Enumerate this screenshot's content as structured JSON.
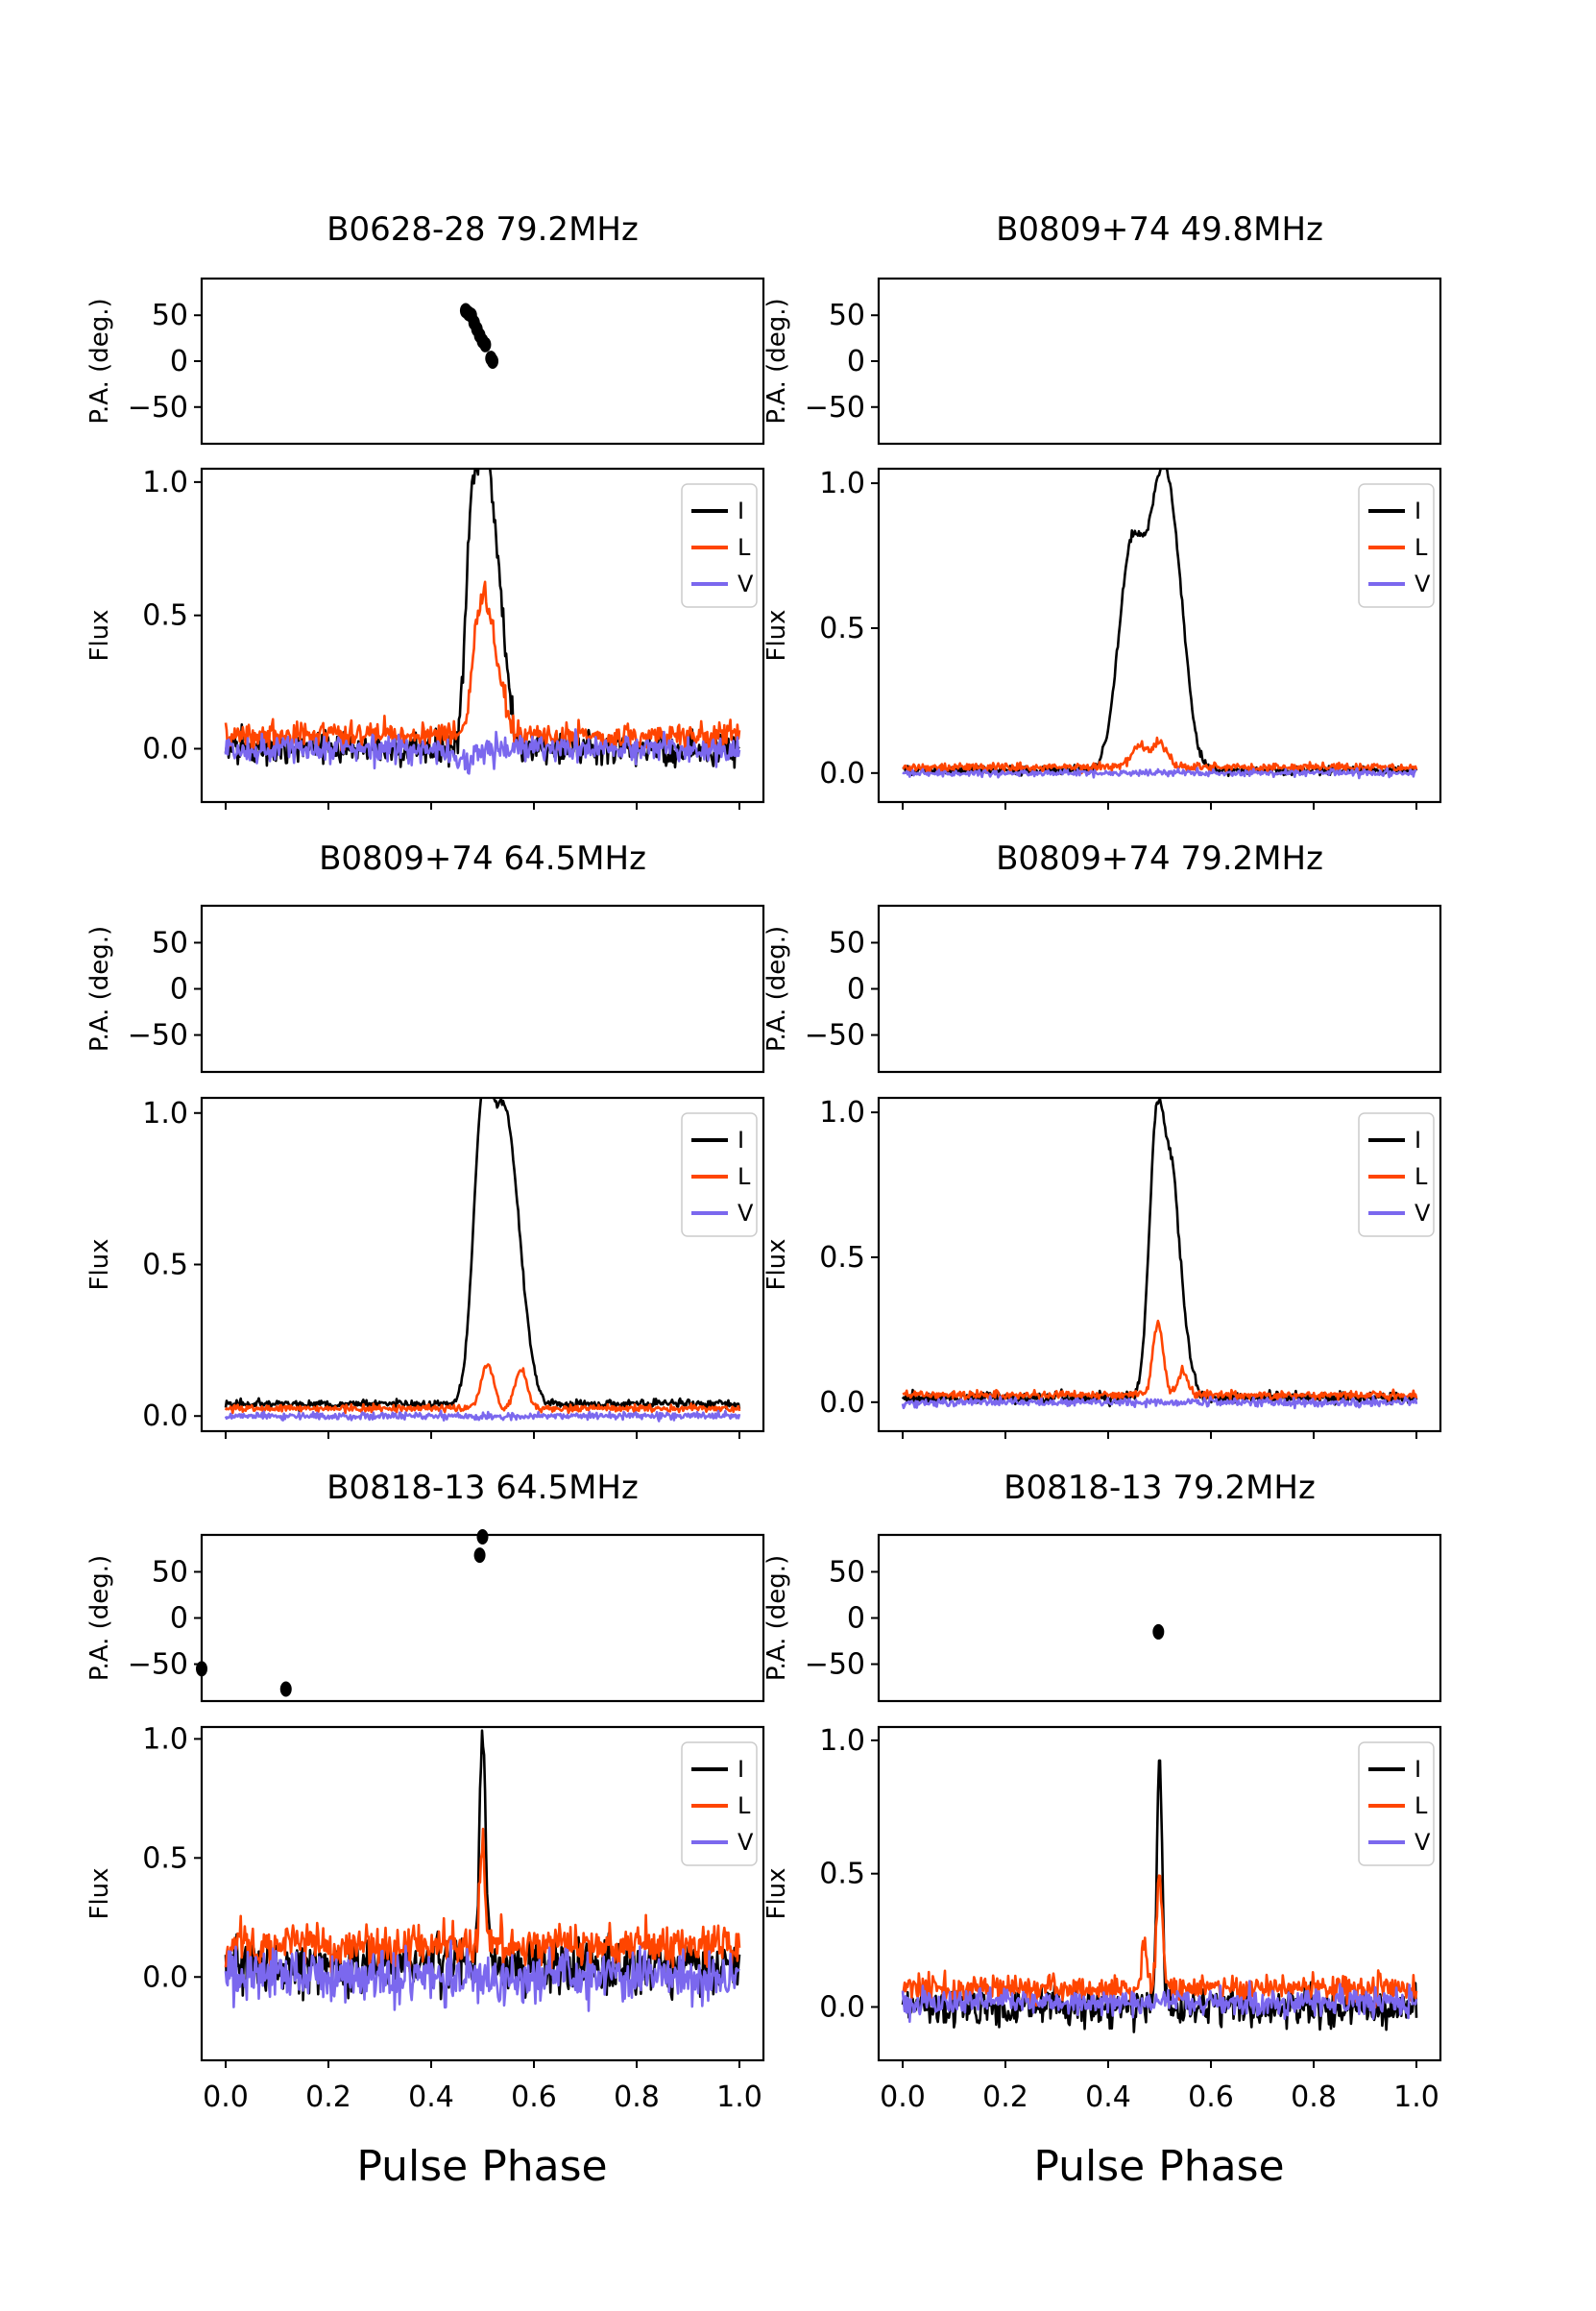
{
  "figure": {
    "xlabel": "Pulse Phase"
  },
  "colors": {
    "I": "#000000",
    "L": "#ff4500",
    "V": "#7b68ee"
  },
  "chart_data": [
    {
      "title": "B0628-28 79.2MHz",
      "type": "line",
      "pa": {
        "ylabel": "P.A. (deg.)",
        "ylim": [
          -90,
          90
        ],
        "yticks": [
          "50",
          "0",
          "−50"
        ],
        "points": [
          [
            0.47,
            55
          ],
          [
            0.475,
            52
          ],
          [
            0.48,
            50
          ],
          [
            0.485,
            42
          ],
          [
            0.49,
            35
          ],
          [
            0.495,
            28
          ],
          [
            0.5,
            22
          ],
          [
            0.505,
            18
          ],
          [
            0.515,
            3
          ],
          [
            0.518,
            0
          ]
        ]
      },
      "flux": {
        "ylabel": "Flux",
        "xlim": [
          0,
          1
        ],
        "ylim": [
          -0.2,
          1.05
        ],
        "yticks": [
          "0.0",
          "0.5",
          "1.0"
        ],
        "xticks": [
          "0.0",
          "0.2",
          "0.4",
          "0.6",
          "0.8",
          "1.0"
        ],
        "legend": [
          "I",
          "L",
          "V"
        ],
        "legend_position": "top-right",
        "series": [
          {
            "name": "I",
            "baseline": 0.0,
            "noise": 0.06,
            "components": [
              [
                0.48,
                0.9,
                0.012
              ],
              [
                0.505,
                0.95,
                0.012
              ],
              [
                0.53,
                0.6,
                0.015
              ]
            ]
          },
          {
            "name": "L",
            "baseline": 0.05,
            "noise": 0.05,
            "components": [
              [
                0.49,
                0.35,
                0.012
              ],
              [
                0.51,
                0.4,
                0.012
              ],
              [
                0.535,
                0.18,
                0.012
              ]
            ]
          },
          {
            "name": "V",
            "baseline": 0.0,
            "noise": 0.05,
            "components": [
              [
                0.46,
                -0.05,
                0.02
              ]
            ]
          }
        ]
      }
    },
    {
      "title": "B0809+74 49.8MHz",
      "type": "line",
      "pa": {
        "ylabel": "P.A. (deg.)",
        "ylim": [
          -90,
          90
        ],
        "yticks": [
          "50",
          "0",
          "−50"
        ],
        "points": []
      },
      "flux": {
        "ylabel": "Flux",
        "xlim": [
          0,
          1
        ],
        "ylim": [
          -0.1,
          1.05
        ],
        "yticks": [
          "0.0",
          "0.5",
          "1.0"
        ],
        "xticks": [
          "0.0",
          "0.2",
          "0.4",
          "0.6",
          "0.8",
          "1.0"
        ],
        "legend": [
          "I",
          "L",
          "V"
        ],
        "legend_position": "top-right",
        "series": [
          {
            "name": "I",
            "baseline": 0.01,
            "noise": 0.015,
            "components": [
              [
                0.445,
                0.75,
                0.025
              ],
              [
                0.505,
                0.95,
                0.025
              ],
              [
                0.54,
                0.3,
                0.02
              ]
            ]
          },
          {
            "name": "L",
            "baseline": 0.02,
            "noise": 0.015,
            "components": [
              [
                0.46,
                0.07,
                0.015
              ],
              [
                0.5,
                0.08,
                0.015
              ]
            ]
          },
          {
            "name": "V",
            "baseline": 0.0,
            "noise": 0.012,
            "components": []
          }
        ]
      }
    },
    {
      "title": "B0809+74 64.5MHz",
      "type": "line",
      "pa": {
        "ylabel": "P.A. (deg.)",
        "ylim": [
          -90,
          90
        ],
        "yticks": [
          "50",
          "0",
          "−50"
        ],
        "points": []
      },
      "flux": {
        "ylabel": "Flux",
        "xlim": [
          0,
          1
        ],
        "ylim": [
          -0.05,
          1.05
        ],
        "yticks": [
          "0.0",
          "0.5",
          "1.0"
        ],
        "xticks": [
          "0.0",
          "0.2",
          "0.4",
          "0.6",
          "0.8",
          "1.0"
        ],
        "legend": [
          "I",
          "L",
          "V"
        ],
        "legend_position": "top-right",
        "series": [
          {
            "name": "I",
            "baseline": 0.04,
            "noise": 0.015,
            "components": [
              [
                0.5,
                0.95,
                0.018
              ],
              [
                0.54,
                0.8,
                0.02
              ],
              [
                0.57,
                0.35,
                0.02
              ]
            ]
          },
          {
            "name": "L",
            "baseline": 0.025,
            "noise": 0.012,
            "components": [
              [
                0.51,
                0.15,
                0.012
              ],
              [
                0.575,
                0.13,
                0.012
              ]
            ]
          },
          {
            "name": "V",
            "baseline": 0.0,
            "noise": 0.012,
            "components": []
          }
        ]
      }
    },
    {
      "title": "B0809+74 79.2MHz",
      "type": "line",
      "pa": {
        "ylabel": "P.A. (deg.)",
        "ylim": [
          -90,
          90
        ],
        "yticks": [
          "50",
          "0",
          "−50"
        ],
        "points": []
      },
      "flux": {
        "ylabel": "Flux",
        "xlim": [
          0,
          1
        ],
        "ylim": [
          -0.1,
          1.05
        ],
        "yticks": [
          "0.0",
          "0.5",
          "1.0"
        ],
        "xticks": [
          "0.0",
          "0.2",
          "0.4",
          "0.6",
          "0.8",
          "1.0"
        ],
        "legend": [
          "I",
          "L",
          "V"
        ],
        "legend_position": "top-right",
        "series": [
          {
            "name": "I",
            "baseline": 0.015,
            "noise": 0.02,
            "components": [
              [
                0.495,
                0.95,
                0.015
              ],
              [
                0.525,
                0.65,
                0.014
              ],
              [
                0.55,
                0.15,
                0.015
              ]
            ]
          },
          {
            "name": "L",
            "baseline": 0.025,
            "noise": 0.015,
            "components": [
              [
                0.497,
                0.25,
                0.01
              ],
              [
                0.545,
                0.08,
                0.01
              ]
            ]
          },
          {
            "name": "V",
            "baseline": 0.0,
            "noise": 0.015,
            "components": []
          }
        ]
      }
    },
    {
      "title": "B0818-13 64.5MHz",
      "type": "line",
      "pa": {
        "ylabel": "P.A. (deg.)",
        "ylim": [
          -90,
          90
        ],
        "yticks": [
          "50",
          "0",
          "−50"
        ],
        "points": [
          [
            0.0,
            -55
          ],
          [
            0.15,
            -77
          ],
          [
            0.495,
            68
          ],
          [
            0.5,
            88
          ]
        ]
      },
      "flux": {
        "ylabel": "Flux",
        "xlim": [
          0,
          1
        ],
        "ylim": [
          -0.35,
          1.05
        ],
        "yticks": [
          "0.0",
          "0.5",
          "1.0"
        ],
        "xticks": [
          "0.0",
          "0.2",
          "0.4",
          "0.6",
          "0.8",
          "1.0"
        ],
        "legend": [
          "I",
          "L",
          "V"
        ],
        "legend_position": "top-right",
        "series": [
          {
            "name": "I",
            "baseline": 0.05,
            "noise": 0.11,
            "components": [
              [
                0.5,
                0.95,
                0.006
              ]
            ]
          },
          {
            "name": "L",
            "baseline": 0.13,
            "noise": 0.09,
            "components": [
              [
                0.5,
                0.42,
                0.005
              ]
            ]
          },
          {
            "name": "V",
            "baseline": 0.0,
            "noise": 0.11,
            "components": []
          }
        ]
      }
    },
    {
      "title": "B0818-13 79.2MHz",
      "type": "line",
      "pa": {
        "ylabel": "P.A. (deg.)",
        "ylim": [
          -90,
          90
        ],
        "yticks": [
          "50",
          "0",
          "−50"
        ],
        "points": [
          [
            0.498,
            -15
          ]
        ]
      },
      "flux": {
        "ylabel": "Flux",
        "xlim": [
          0,
          1
        ],
        "ylim": [
          -0.2,
          1.05
        ],
        "yticks": [
          "0.0",
          "0.5",
          "1.0"
        ],
        "xticks": [
          "0.0",
          "0.2",
          "0.4",
          "0.6",
          "0.8",
          "1.0"
        ],
        "legend": [
          "I",
          "L",
          "V"
        ],
        "legend_position": "top-right",
        "series": [
          {
            "name": "I",
            "baseline": 0.0,
            "noise": 0.07,
            "components": [
              [
                0.5,
                0.98,
                0.005
              ]
            ]
          },
          {
            "name": "L",
            "baseline": 0.07,
            "noise": 0.05,
            "components": [
              [
                0.5,
                0.4,
                0.006
              ],
              [
                0.47,
                0.15,
                0.005
              ]
            ]
          },
          {
            "name": "V",
            "baseline": 0.02,
            "noise": 0.05,
            "components": []
          }
        ]
      }
    }
  ]
}
